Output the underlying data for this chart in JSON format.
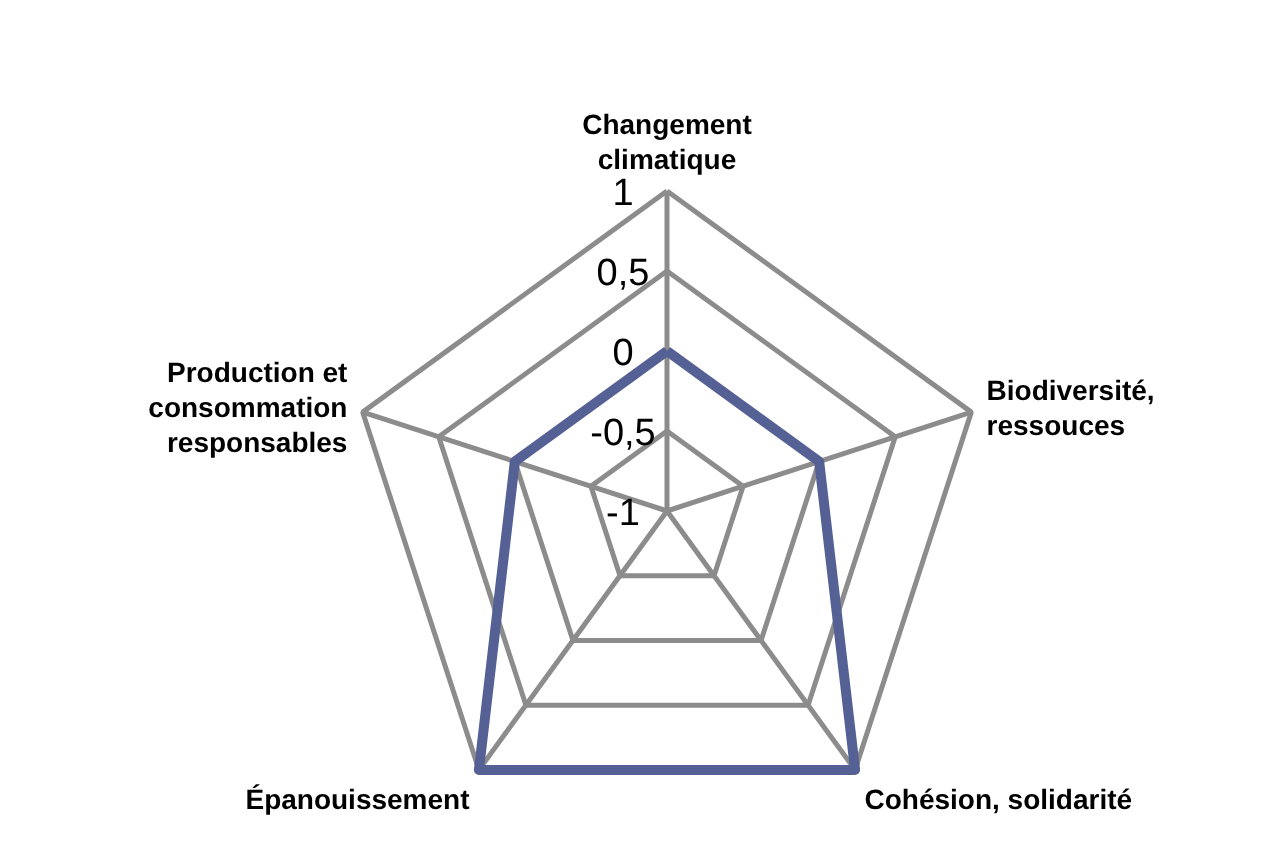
{
  "chart_data": {
    "type": "radar",
    "categories": [
      "Changement\nclimatique",
      "Biodiversité,\nressouces",
      "Cohésion, solidarité",
      "Épanouissement",
      "Production et\nconsommation\nresponsables"
    ],
    "series": [
      {
        "color": "#556194",
        "values": [
          0,
          0,
          1,
          1,
          0
        ]
      }
    ],
    "ylim": [
      -1,
      1
    ],
    "yticks": [
      -1,
      {
        "value": -0.5,
        "label": "-0,5"
      },
      0,
      {
        "value": 0.5,
        "label": "0,5"
      },
      1
    ],
    "grid": true,
    "marker": "none",
    "line_style": "solid"
  }
}
